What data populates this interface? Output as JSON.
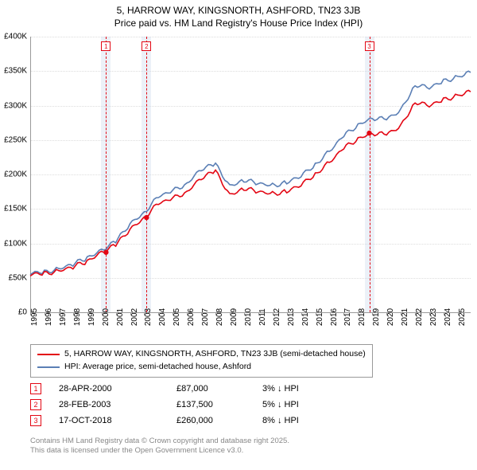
{
  "title": {
    "line1": "5, HARROW WAY, KINGSNORTH, ASHFORD, TN23 3JB",
    "line2": "Price paid vs. HM Land Registry's House Price Index (HPI)",
    "fontsize": 12,
    "color": "#000000"
  },
  "chart": {
    "type": "line",
    "background_color": "#ffffff",
    "grid_color": "#dddddd",
    "axis_color": "#999999",
    "xlim": [
      1995,
      2025.9
    ],
    "ylim": [
      0,
      400000
    ],
    "ytick_step": 50000,
    "yticks": [
      "£0",
      "£50K",
      "£100K",
      "£150K",
      "£200K",
      "£250K",
      "£300K",
      "£350K",
      "£400K"
    ],
    "xticks": [
      "1995",
      "1996",
      "1997",
      "1998",
      "1999",
      "2000",
      "2001",
      "2002",
      "2003",
      "2004",
      "2005",
      "2006",
      "2007",
      "2008",
      "2009",
      "2010",
      "2011",
      "2012",
      "2013",
      "2014",
      "2015",
      "2016",
      "2017",
      "2018",
      "2019",
      "2020",
      "2021",
      "2022",
      "2023",
      "2024",
      "2025"
    ],
    "tick_fontsize": 10,
    "line_width": 1.6,
    "series": [
      {
        "name": "property",
        "label": "5, HARROW WAY, KINGSNORTH, ASHFORD, TN23 3JB (semi-detached house)",
        "color": "#e30613",
        "x": [
          1995,
          1996,
          1997,
          1998,
          1999,
          2000,
          2001,
          2002,
          2003,
          2004,
          2005,
          2006,
          2007,
          2008,
          2009,
          2010,
          2011,
          2012,
          2013,
          2014,
          2015,
          2016,
          2017,
          2018,
          2019,
          2020,
          2021,
          2022,
          2023,
          2024,
          2025,
          2025.9
        ],
        "y": [
          55000,
          56000,
          60000,
          66000,
          74000,
          87000,
          98000,
          120000,
          137500,
          158000,
          165000,
          175000,
          195000,
          205000,
          170000,
          180000,
          175000,
          172000,
          175000,
          185000,
          200000,
          218000,
          238000,
          252000,
          260000,
          258000,
          270000,
          305000,
          300000,
          308000,
          315000,
          320000
        ]
      },
      {
        "name": "hpi",
        "label": "HPI: Average price, semi-detached house, Ashford",
        "color": "#5b7fb5",
        "x": [
          1995,
          1996,
          1997,
          1998,
          1999,
          2000,
          2001,
          2002,
          2003,
          2004,
          2005,
          2006,
          2007,
          2008,
          2009,
          2010,
          2011,
          2012,
          2013,
          2014,
          2015,
          2016,
          2017,
          2018,
          2019,
          2020,
          2021,
          2022,
          2023,
          2024,
          2025,
          2025.9
        ],
        "y": [
          57000,
          58000,
          63000,
          70000,
          79000,
          90000,
          103000,
          128000,
          145000,
          168000,
          176000,
          187000,
          208000,
          215000,
          183000,
          192000,
          187000,
          184000,
          188000,
          198000,
          214000,
          234000,
          256000,
          272000,
          282000,
          280000,
          293000,
          330000,
          326000,
          335000,
          342000,
          348000
        ]
      }
    ],
    "sale_points": [
      {
        "x": 2000.32,
        "y": 87000,
        "color": "#e30613"
      },
      {
        "x": 2003.16,
        "y": 137500,
        "color": "#e30613"
      },
      {
        "x": 2018.79,
        "y": 260000,
        "color": "#e30613"
      }
    ],
    "marker_bands": [
      {
        "x": 2000.32,
        "num": "1",
        "color": "#e30613",
        "band_color": "rgba(200,215,235,0.35)"
      },
      {
        "x": 2003.16,
        "num": "2",
        "color": "#e30613",
        "band_color": "rgba(200,215,235,0.35)"
      },
      {
        "x": 2018.79,
        "num": "3",
        "color": "#e30613",
        "band_color": "rgba(200,215,235,0.35)"
      }
    ]
  },
  "legend": {
    "border_color": "#999999",
    "fontsize": 10.5,
    "items": [
      {
        "color": "#e30613",
        "label": "5, HARROW WAY, KINGSNORTH, ASHFORD, TN23 3JB (semi-detached house)"
      },
      {
        "color": "#5b7fb5",
        "label": "HPI: Average price, semi-detached house, Ashford"
      }
    ]
  },
  "marker_table": {
    "fontsize": 11,
    "rows": [
      {
        "num": "1",
        "color": "#e30613",
        "date": "28-APR-2000",
        "price": "£87,000",
        "delta": "3% ↓ HPI"
      },
      {
        "num": "2",
        "color": "#e30613",
        "date": "28-FEB-2003",
        "price": "£137,500",
        "delta": "5% ↓ HPI"
      },
      {
        "num": "3",
        "color": "#e30613",
        "date": "17-OCT-2018",
        "price": "£260,000",
        "delta": "8% ↓ HPI"
      }
    ]
  },
  "footer": {
    "line1": "Contains HM Land Registry data © Crown copyright and database right 2025.",
    "line2": "This data is licensed under the Open Government Licence v3.0.",
    "color": "#888888",
    "fontsize": 9.5
  }
}
